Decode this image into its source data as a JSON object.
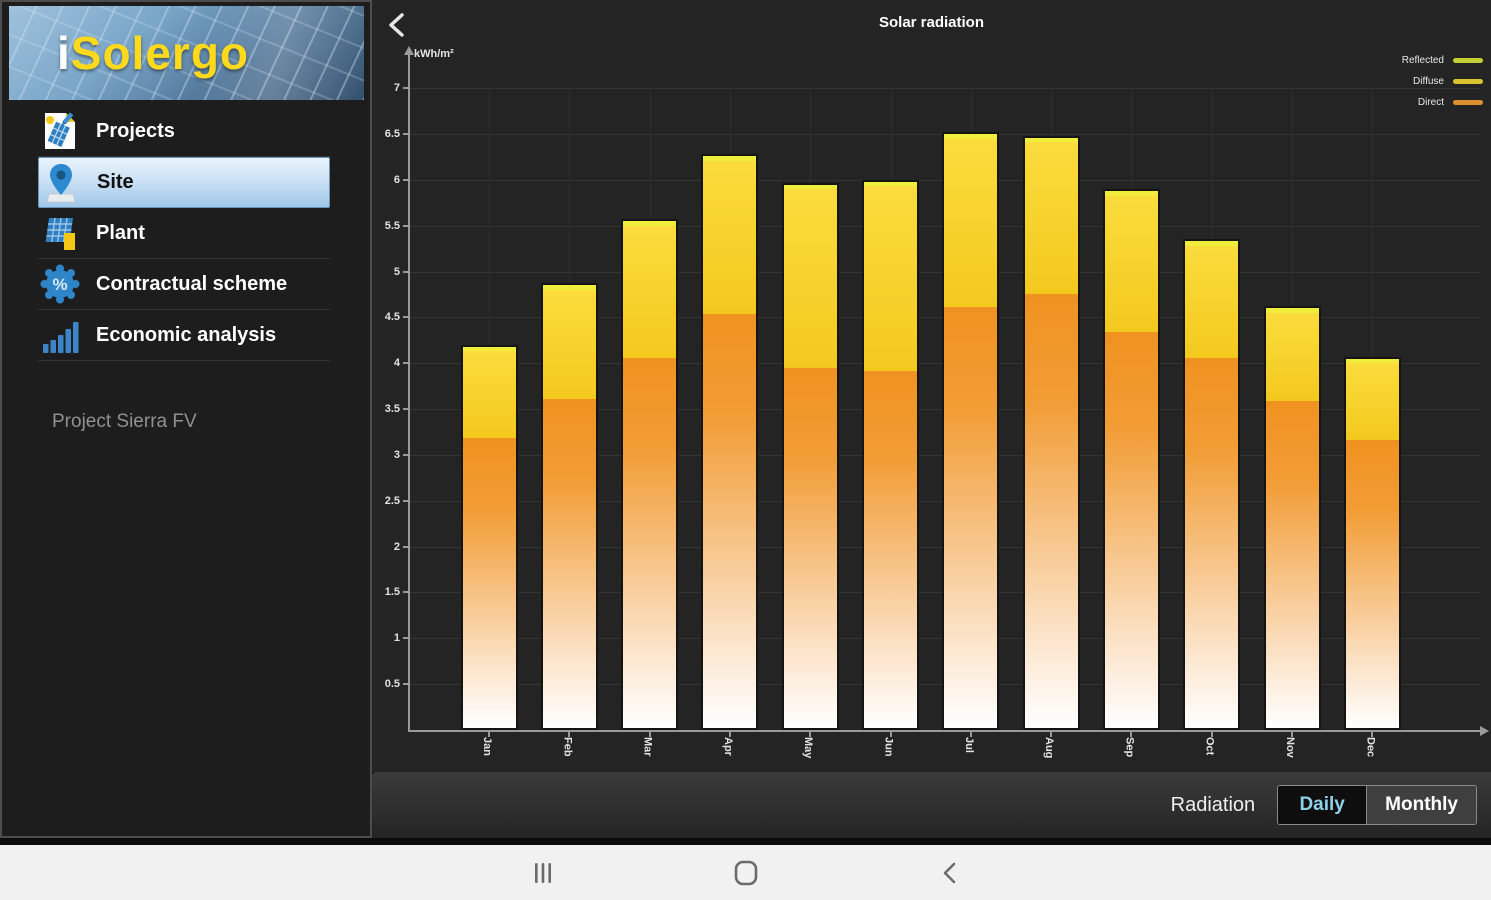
{
  "logo": {
    "prefix": "i",
    "name": "Solergo"
  },
  "sidebar": {
    "items": [
      {
        "label": "Projects",
        "selected": false
      },
      {
        "label": "Site",
        "selected": true
      },
      {
        "label": "Plant",
        "selected": false
      },
      {
        "label": "Contractual scheme",
        "selected": false
      },
      {
        "label": "Economic analysis",
        "selected": false
      }
    ],
    "project_name": "Project Sierra FV"
  },
  "header": {
    "title": "Solar radiation"
  },
  "chart_data": {
    "type": "bar",
    "stacked": true,
    "title": "Solar radiation",
    "ylabel": "kWh/m²",
    "ylim": [
      0,
      7
    ],
    "ytick_step": 0.5,
    "grid": true,
    "legend_position": "top-right",
    "categories": [
      "Jan",
      "Feb",
      "Mar",
      "Apr",
      "May",
      "Jun",
      "Jul",
      "Aug",
      "Sep",
      "Oct",
      "Nov",
      "Dec"
    ],
    "series": [
      {
        "name": "Direct",
        "legend_color": "#dd8f2e",
        "values": [
          3.2,
          3.62,
          4.07,
          4.55,
          3.95,
          3.92,
          4.62,
          4.77,
          4.35,
          4.07,
          3.6,
          3.17
        ]
      },
      {
        "name": "Diffuse",
        "legend_color": "#d8c22e",
        "values": [
          0.95,
          1.2,
          1.45,
          1.68,
          1.97,
          2.03,
          1.85,
          1.66,
          1.5,
          1.23,
          0.97,
          0.85
        ]
      },
      {
        "name": "Reflected",
        "legend_color": "#c3cf35",
        "values": [
          0.05,
          0.05,
          0.05,
          0.05,
          0.05,
          0.05,
          0.05,
          0.05,
          0.05,
          0.05,
          0.05,
          0.05
        ]
      }
    ]
  },
  "controls": {
    "group_label": "Radiation",
    "options": [
      "Daily",
      "Monthly"
    ],
    "selected": "Daily"
  }
}
